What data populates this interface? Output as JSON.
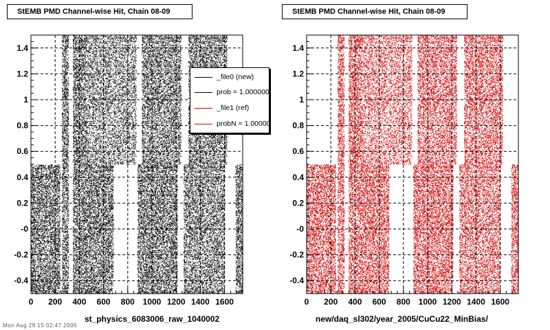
{
  "panels": [
    {
      "title": "StEMB PMD Channel-wise Hit, Chain 08-09",
      "xlabel": "st_physics_6083006_raw_1040002",
      "marker_color": "#000000"
    },
    {
      "title": "StEMB PMD Channel-wise Hit, Chain 08-09",
      "xlabel": "new/daq_sl302/year_2005/CuCu22_MinBias/",
      "marker_color": "#cc0000"
    }
  ],
  "legend": {
    "entries": [
      {
        "label": "_file0 (new)",
        "color": "#000000"
      },
      {
        "label": "prob = 1.000000",
        "color": "#000000"
      },
      {
        "label": "_file1 (ref)",
        "color": "#cc0000"
      },
      {
        "label": "probN = 1.000000",
        "color": "#cc0000"
      }
    ]
  },
  "footer": "Mon Aug 29 15:02:47 2005",
  "chart_data": [
    {
      "type": "scatter",
      "title": "StEMB PMD Channel-wise Hit, Chain 08-09",
      "xlabel": "st_physics_6083006_raw_1040002",
      "ylabel": "",
      "xlim": [
        0,
        1750
      ],
      "ylim": [
        -0.5,
        1.5
      ],
      "xticks": [
        0,
        200,
        400,
        600,
        800,
        1000,
        1200,
        1400,
        1600
      ],
      "xtick_labels": [
        "0",
        "200",
        "400",
        "600",
        "800",
        "1000",
        "1200",
        "1400",
        "1600"
      ],
      "yticks": [
        -0.4,
        -0.2,
        0,
        0.2,
        0.4,
        0.6,
        0.8,
        1,
        1.2,
        1.4
      ],
      "ytick_labels": [
        "-0.4",
        "-0.2",
        "-0",
        "0.2",
        "0.4",
        "0.6",
        "0.8",
        "1",
        "1.2",
        "1.4"
      ],
      "grid": true,
      "legend_position": "top-right",
      "series_color": "#000000",
      "point_density": 0.55,
      "regions": [
        {
          "x": [
            0,
            240
          ],
          "y": [
            -0.5,
            0.5
          ]
        },
        {
          "x": [
            255,
            310
          ],
          "y": [
            -0.5,
            1.5
          ]
        },
        {
          "x": [
            345,
            450
          ],
          "y": [
            -0.5,
            1.5
          ]
        },
        {
          "x": [
            450,
            680
          ],
          "y": [
            -0.5,
            0.5
          ]
        },
        {
          "x": [
            450,
            870
          ],
          "y": [
            0.5,
            1.5
          ]
        },
        {
          "x": [
            880,
            1000
          ],
          "y": [
            -0.5,
            0.5
          ]
        },
        {
          "x": [
            915,
            1240
          ],
          "y": [
            0.5,
            1.5
          ]
        },
        {
          "x": [
            1000,
            1210
          ],
          "y": [
            -0.5,
            0.5
          ]
        },
        {
          "x": [
            1260,
            1600
          ],
          "y": [
            -0.5,
            0.5
          ]
        },
        {
          "x": [
            1300,
            1620
          ],
          "y": [
            0.5,
            1.5
          ]
        },
        {
          "x": [
            1690,
            1750
          ],
          "y": [
            -0.5,
            0.5
          ]
        }
      ]
    },
    {
      "type": "scatter",
      "title": "StEMB PMD Channel-wise Hit, Chain 08-09",
      "xlabel": "new/daq_sl302/year_2005/CuCu22_MinBias/",
      "ylabel": "",
      "xlim": [
        0,
        1750
      ],
      "ylim": [
        -0.5,
        1.5
      ],
      "xticks": [
        0,
        200,
        400,
        600,
        800,
        1000,
        1200,
        1400,
        1600
      ],
      "xtick_labels": [
        "0",
        "200",
        "400",
        "600",
        "800",
        "1000",
        "1200",
        "1400",
        "1600"
      ],
      "yticks": [
        -0.4,
        -0.2,
        0,
        0.2,
        0.4,
        0.6,
        0.8,
        1,
        1.2,
        1.4
      ],
      "ytick_labels": [
        "-0.4",
        "-0.2",
        "-0",
        "0.2",
        "0.4",
        "0.6",
        "0.8",
        "1",
        "1.2",
        "1.4"
      ],
      "grid": true,
      "series_color": "#cc0000",
      "point_density": 0.55,
      "regions": [
        {
          "x": [
            0,
            240
          ],
          "y": [
            -0.5,
            0.5
          ]
        },
        {
          "x": [
            255,
            310
          ],
          "y": [
            -0.5,
            1.5
          ]
        },
        {
          "x": [
            345,
            450
          ],
          "y": [
            -0.5,
            1.5
          ]
        },
        {
          "x": [
            450,
            680
          ],
          "y": [
            -0.5,
            0.5
          ]
        },
        {
          "x": [
            450,
            870
          ],
          "y": [
            0.5,
            1.5
          ]
        },
        {
          "x": [
            880,
            1000
          ],
          "y": [
            -0.5,
            0.5
          ]
        },
        {
          "x": [
            915,
            1240
          ],
          "y": [
            0.5,
            1.5
          ]
        },
        {
          "x": [
            1000,
            1210
          ],
          "y": [
            -0.5,
            0.5
          ]
        },
        {
          "x": [
            1260,
            1600
          ],
          "y": [
            -0.5,
            0.5
          ]
        },
        {
          "x": [
            1300,
            1620
          ],
          "y": [
            0.5,
            1.5
          ]
        },
        {
          "x": [
            1690,
            1750
          ],
          "y": [
            -0.5,
            0.5
          ]
        }
      ]
    }
  ]
}
